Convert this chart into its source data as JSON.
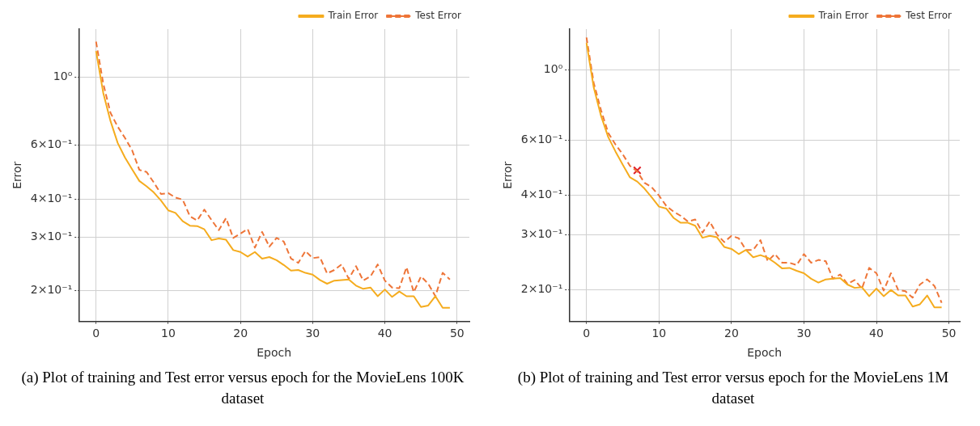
{
  "chart_data": [
    {
      "type": "line",
      "xlabel": "Epoch",
      "ylabel": "Error",
      "log": "y",
      "grid": true,
      "legend": "top right",
      "xlim": [
        -2.4,
        51.7
      ],
      "xticks": [
        0,
        10,
        20,
        30,
        40,
        50
      ],
      "ylim": [
        0.159,
        1.44
      ],
      "yticks": [
        {
          "value": 0.2,
          "label": "2×10⁻¹"
        },
        {
          "value": 0.3,
          "label": "3×10⁻¹"
        },
        {
          "value": 0.4,
          "label": "4×10⁻¹"
        },
        {
          "value": 0.6,
          "label": "6×10⁻¹"
        },
        {
          "value": 1,
          "label": "10⁰"
        }
      ],
      "x": [
        0,
        1,
        2,
        3,
        4,
        5,
        6,
        7,
        8,
        9,
        10,
        11,
        12,
        13,
        14,
        15,
        16,
        17,
        18,
        19,
        20,
        21,
        22,
        23,
        24,
        25,
        26,
        27,
        28,
        29,
        30,
        31,
        32,
        33,
        34,
        35,
        36,
        37,
        38,
        39,
        40,
        41,
        42,
        43,
        44,
        45,
        46,
        47,
        48,
        49
      ],
      "series": [
        {
          "name": "Train Error",
          "type": "line",
          "color": "#f5ac1e",
          "line_style": "solid",
          "values": [
            1.22,
            0.89,
            0.72,
            0.61,
            0.547,
            0.5,
            0.458,
            0.44,
            0.42,
            0.395,
            0.367,
            0.36,
            0.338,
            0.327,
            0.326,
            0.318,
            0.293,
            0.297,
            0.294,
            0.272,
            0.268,
            0.259,
            0.268,
            0.255,
            0.258,
            0.252,
            0.243,
            0.233,
            0.234,
            0.229,
            0.226,
            0.217,
            0.211,
            0.216,
            0.217,
            0.218,
            0.208,
            0.203,
            0.205,
            0.192,
            0.202,
            0.191,
            0.199,
            0.192,
            0.192,
            0.177,
            0.179,
            0.192,
            0.176,
            0.176
          ]
        },
        {
          "name": "Test Error",
          "type": "line",
          "color": "#ee7538",
          "line_style": "dashed",
          "values": [
            1.31,
            0.955,
            0.766,
            0.69,
            0.634,
            0.577,
            0.498,
            0.49,
            0.453,
            0.415,
            0.418,
            0.404,
            0.398,
            0.351,
            0.34,
            0.369,
            0.341,
            0.316,
            0.346,
            0.298,
            0.308,
            0.319,
            0.277,
            0.312,
            0.279,
            0.298,
            0.29,
            0.255,
            0.247,
            0.27,
            0.256,
            0.258,
            0.228,
            0.234,
            0.244,
            0.219,
            0.241,
            0.216,
            0.223,
            0.244,
            0.216,
            0.205,
            0.204,
            0.239,
            0.198,
            0.223,
            0.211,
            0.192,
            0.229,
            0.218
          ]
        }
      ],
      "annotations": [
        "(a) Plot of training and Test error versus epoch for the MovieLens 100K dataset"
      ]
    },
    {
      "type": "line",
      "xlabel": "Epoch",
      "ylabel": "Error",
      "log": "y",
      "grid": true,
      "legend": "top right",
      "xlim": [
        -2.4,
        51.5
      ],
      "xticks": [
        0,
        10,
        20,
        30,
        40,
        50
      ],
      "ylim": [
        0.159,
        1.35
      ],
      "yticks": [
        {
          "value": 0.2,
          "label": "2×10⁻¹"
        },
        {
          "value": 0.3,
          "label": "3×10⁻¹"
        },
        {
          "value": 0.4,
          "label": "4×10⁻¹"
        },
        {
          "value": 0.6,
          "label": "6×10⁻¹"
        },
        {
          "value": 1,
          "label": "10⁰"
        }
      ],
      "x": [
        0,
        1,
        2,
        3,
        4,
        5,
        6,
        7,
        8,
        9,
        10,
        11,
        12,
        13,
        14,
        15,
        16,
        17,
        18,
        19,
        20,
        21,
        22,
        23,
        24,
        25,
        26,
        27,
        28,
        29,
        30,
        31,
        32,
        33,
        34,
        35,
        36,
        37,
        38,
        39,
        40,
        41,
        42,
        43,
        44,
        45,
        46,
        47,
        48,
        49
      ],
      "series": [
        {
          "name": "Train Error",
          "type": "line",
          "color": "#f5ac1e",
          "line_style": "solid",
          "values": [
            1.22,
            0.88,
            0.716,
            0.612,
            0.551,
            0.5,
            0.456,
            0.442,
            0.42,
            0.394,
            0.368,
            0.363,
            0.339,
            0.327,
            0.327,
            0.32,
            0.293,
            0.297,
            0.294,
            0.274,
            0.27,
            0.26,
            0.268,
            0.254,
            0.258,
            0.253,
            0.244,
            0.234,
            0.235,
            0.23,
            0.226,
            0.217,
            0.211,
            0.216,
            0.217,
            0.218,
            0.208,
            0.203,
            0.204,
            0.191,
            0.202,
            0.191,
            0.2,
            0.192,
            0.192,
            0.177,
            0.18,
            0.192,
            0.176,
            0.176
          ]
        },
        {
          "name": "Test Error",
          "type": "line",
          "color": "#ee7538",
          "line_style": "dashed",
          "values": [
            1.27,
            0.91,
            0.746,
            0.631,
            0.58,
            0.54,
            0.496,
            0.476,
            0.438,
            0.424,
            0.399,
            0.37,
            0.355,
            0.344,
            0.33,
            0.335,
            0.304,
            0.33,
            0.3,
            0.284,
            0.297,
            0.292,
            0.268,
            0.268,
            0.288,
            0.247,
            0.26,
            0.244,
            0.244,
            0.24,
            0.26,
            0.244,
            0.249,
            0.247,
            0.217,
            0.224,
            0.209,
            0.215,
            0.202,
            0.235,
            0.226,
            0.199,
            0.226,
            0.2,
            0.198,
            0.189,
            0.208,
            0.216,
            0.206,
            0.182
          ]
        },
        {
          "type": "scatter",
          "color": "#e0202a",
          "marker": "cross",
          "x": [
            7
          ],
          "values": [
            0.48
          ]
        }
      ],
      "annotations": [
        "(b) Plot of training and Test error versus epoch for the MovieLens 1M dataset"
      ]
    }
  ]
}
